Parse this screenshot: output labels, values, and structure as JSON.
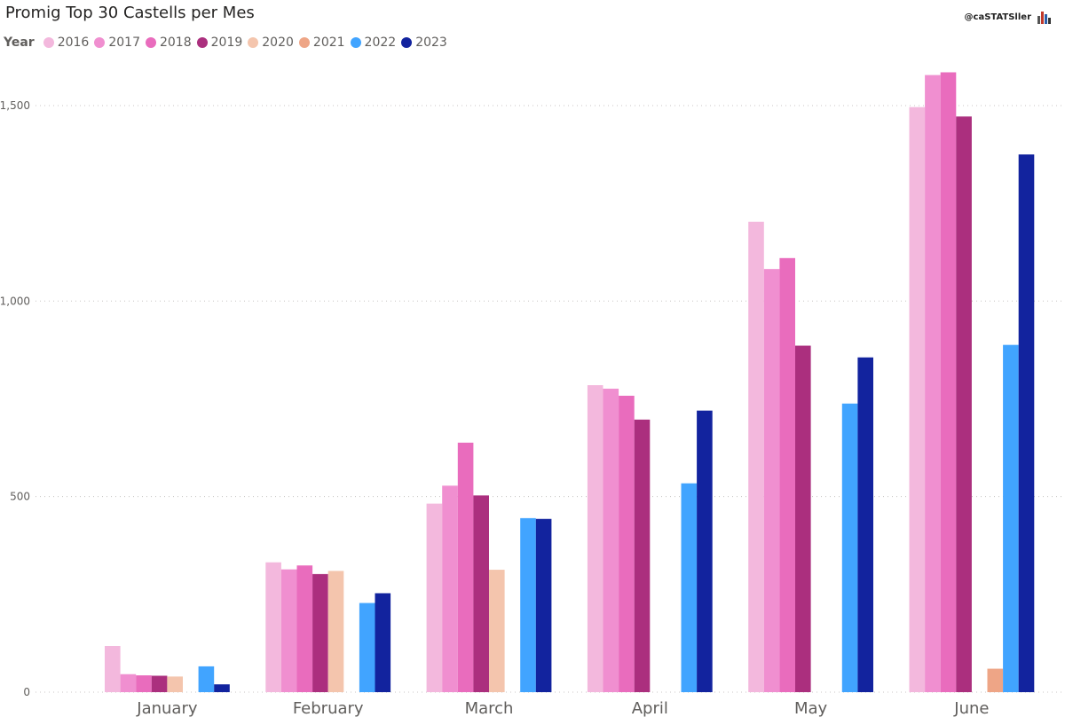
{
  "title": "Promig Top 30 Castells per Mes",
  "watermark": "@caSTATSller",
  "legend": {
    "title": "Year"
  },
  "chart_data": {
    "type": "bar",
    "title": "Promig Top 30 Castells per Mes",
    "categories": [
      "January",
      "February",
      "March",
      "April",
      "May",
      "June"
    ],
    "ylim": [
      0,
      1600
    ],
    "yticks": [
      0,
      500,
      1000,
      1500
    ],
    "ytick_labels": [
      "0",
      "500",
      "1,000",
      "1,500"
    ],
    "grid": "horizontal dotted",
    "legend_position": "top-left",
    "series": [
      {
        "name": "2016",
        "color": "#f3b8dd",
        "values": [
          118,
          332,
          482,
          785,
          1203,
          1496
        ]
      },
      {
        "name": "2017",
        "color": "#f08fd0",
        "values": [
          46,
          314,
          528,
          776,
          1082,
          1578
        ]
      },
      {
        "name": "2018",
        "color": "#e96cbd",
        "values": [
          43,
          324,
          638,
          758,
          1110,
          1585
        ]
      },
      {
        "name": "2019",
        "color": "#ab2f7e",
        "values": [
          42,
          302,
          503,
          697,
          886,
          1472
        ]
      },
      {
        "name": "2020",
        "color": "#f4c5ad",
        "values": [
          40,
          310,
          313,
          null,
          null,
          null
        ]
      },
      {
        "name": "2021",
        "color": "#eea586",
        "values": [
          null,
          null,
          null,
          null,
          null,
          60
        ]
      },
      {
        "name": "2022",
        "color": "#41a4ff",
        "values": [
          66,
          228,
          445,
          534,
          738,
          888
        ]
      },
      {
        "name": "2023",
        "color": "#12239e",
        "values": [
          20,
          253,
          443,
          720,
          856,
          1375
        ]
      }
    ]
  }
}
